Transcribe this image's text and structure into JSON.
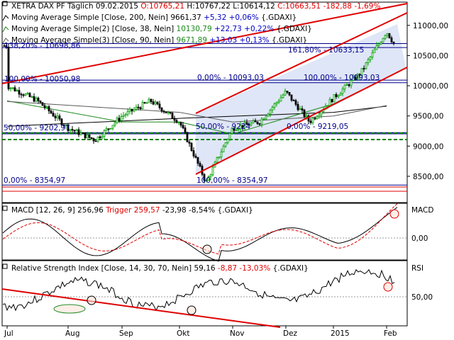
{
  "header": {
    "title": "XETRA DAX PF Täglich",
    "date": "09.02.2015",
    "ohlc": {
      "open": "O:10765,21",
      "high": "H:10767,22",
      "low": "L:10614,12",
      "close": "C:10663,51",
      "change": "-182,88 -1,69%"
    },
    "ma200": {
      "label": "Moving Average Simple [Close, 200, Nein]",
      "value": "9661,37",
      "change": "+5,32 +0,06%",
      "symbol": "{.GDAXI}"
    },
    "ma38": {
      "label": "Moving Average Simple(2) [Close, 38, Nein]",
      "value": "10130,79",
      "change": "+22,73 +0,22%",
      "symbol": "{.GDAXI}"
    },
    "ma90": {
      "label": "Moving Average Simple(3) [Close, 90, Nein]",
      "value": "9671,89",
      "change": "+13,03 +0,13%",
      "symbol": "{.GDAXI}"
    }
  },
  "colors": {
    "candle_up": "#00a000",
    "candle_down": "#000000",
    "ma200": "#000000",
    "ma38": "#1d8a1d",
    "ma90": "#5a5a5a",
    "channel": "#e00000",
    "fib": "#00008b",
    "fib_fill": "#dfe6f7",
    "support_dash": "#008000",
    "macd": "#000000",
    "signal": "#e00000"
  },
  "price_axis": {
    "ticks": [
      "11000,00",
      "10500,00",
      "10000,00",
      "9500,00",
      "9000,00",
      "8500,00"
    ],
    "min": 8100,
    "max": 11350
  },
  "x_axis": {
    "ticks": [
      "Jul",
      "Aug",
      "Sep",
      "Okt",
      "Nov",
      "Dez",
      "2015",
      "Feb"
    ]
  },
  "fibonacci": [
    {
      "label": "138,20% - 10698,86",
      "value": 10698.86
    },
    {
      "label": "161,80% - 10633,15",
      "value": 10633.15
    },
    {
      "label": "100,00% - 10050,98",
      "value": 10050.98
    },
    {
      "label": "0,00% - 10093,03",
      "value": 10093.03
    },
    {
      "label": "100,00% - 10093,03",
      "value": 10093.03
    },
    {
      "label": "50,00% - 9202,97",
      "value": 9202.97
    },
    {
      "label": "50,00% - 9224",
      "value": 9224
    },
    {
      "label": "0,00% - 9219,05",
      "value": 9219.05
    },
    {
      "label": "0,00% - 8354,97",
      "value": 8354.97
    },
    {
      "label": "100,00% - 8354,97",
      "value": 8354.97
    }
  ],
  "macd": {
    "label": "MACD [12, 26, 9]",
    "value": "256,96",
    "trigger_label": "Trigger",
    "trigger_value": "259,57",
    "change": "-23,98 -8,54%",
    "symbol": "{.GDAXI}",
    "axis_title": "MACD",
    "axis_tick": "0,00"
  },
  "rsi": {
    "label": "Relative Strength Index [Close, 14, 30, 70, Nein]",
    "value": "59,16",
    "change": "-8,87 -13,03%",
    "symbol": "{.GDAXI}",
    "axis_title": "RSI",
    "axis_tick": "50,00"
  },
  "chart_data": {
    "type": "candlestick",
    "title": "XETRA DAX PF Täglich",
    "x_months": [
      "Jul",
      "Aug",
      "Sep",
      "Okt",
      "Nov",
      "Dez",
      "2015",
      "Feb"
    ],
    "ylim": [
      8100,
      11350
    ],
    "price_path": [
      {
        "t": "Jul",
        "v": 10000
      },
      {
        "t": "mid-Jul",
        "v": 9750
      },
      {
        "t": "Aug",
        "v": 9300
      },
      {
        "t": "mid-Aug",
        "v": 9100
      },
      {
        "t": "Sep",
        "v": 9500
      },
      {
        "t": "mid-Sep",
        "v": 9750
      },
      {
        "t": "Okt",
        "v": 9400
      },
      {
        "t": "mid-Okt",
        "v": 8400
      },
      {
        "t": "Nov",
        "v": 9300
      },
      {
        "t": "mid-Nov",
        "v": 9400
      },
      {
        "t": "Dez",
        "v": 9900
      },
      {
        "t": "mid-Dez",
        "v": 9400
      },
      {
        "t": "2015",
        "v": 9800
      },
      {
        "t": "mid-Jan",
        "v": 10200
      },
      {
        "t": "Feb",
        "v": 10900
      },
      {
        "t": "09.02.2015",
        "v": 10663.51
      }
    ],
    "ma200": [
      {
        "t": "Jul",
        "v": 9330
      },
      {
        "t": "Okt",
        "v": 9460
      },
      {
        "t": "2015",
        "v": 9560
      },
      {
        "t": "Feb",
        "v": 9661.37
      }
    ],
    "ma38": [
      {
        "t": "Jul",
        "v": 9750
      },
      {
        "t": "Sep",
        "v": 9400
      },
      {
        "t": "Okt",
        "v": 9400
      },
      {
        "t": "Nov",
        "v": 9200
      },
      {
        "t": "2015",
        "v": 9700
      },
      {
        "t": "Feb",
        "v": 10130.79
      }
    ],
    "ma90": [
      {
        "t": "Jul",
        "v": 9740
      },
      {
        "t": "Okt",
        "v": 9560
      },
      {
        "t": "Nov",
        "v": 9400
      },
      {
        "t": "2015",
        "v": 9500
      },
      {
        "t": "Feb",
        "v": 9671.89
      }
    ]
  }
}
